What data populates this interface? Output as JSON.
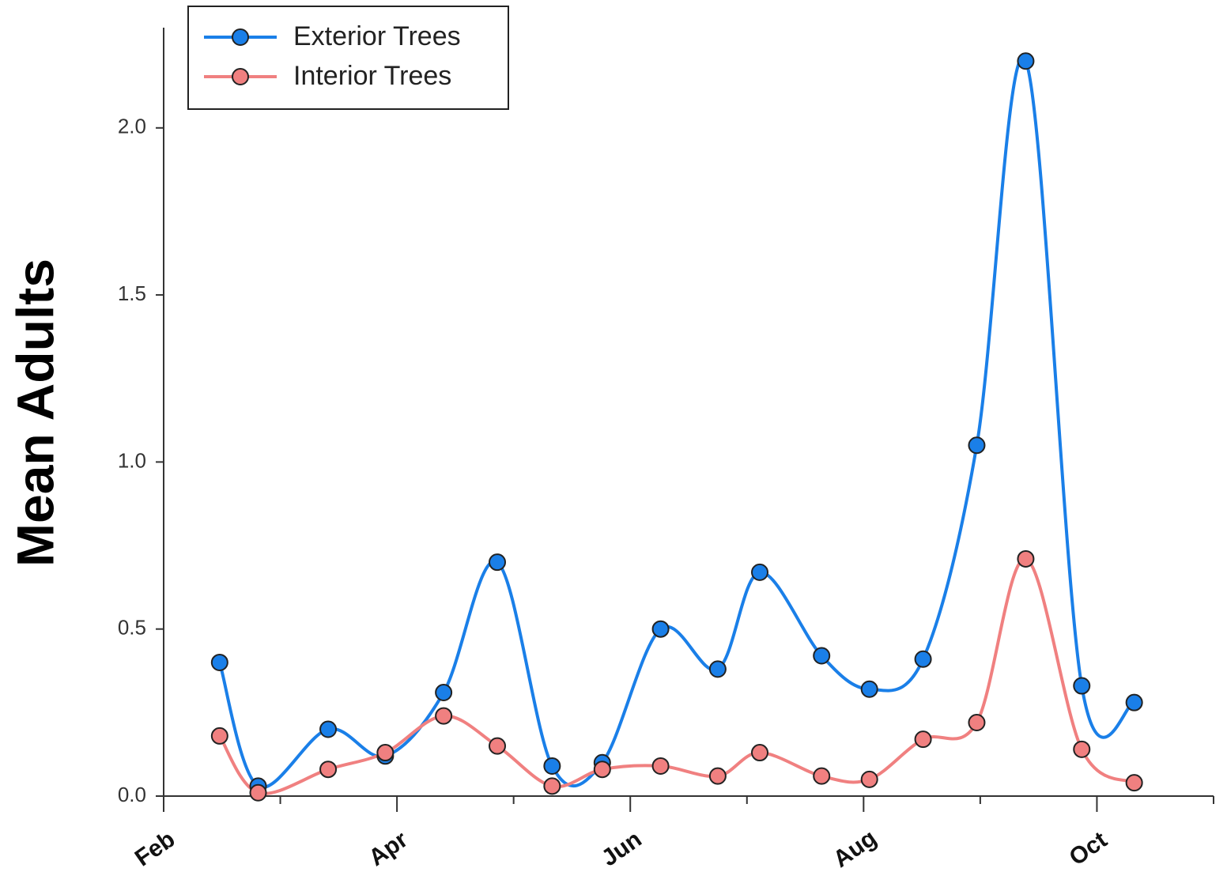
{
  "chart_data": {
    "type": "line",
    "y_label": "Mean Adults",
    "x": [
      2.48,
      2.81,
      3.41,
      3.9,
      4.4,
      4.86,
      5.33,
      5.76,
      6.26,
      6.75,
      7.11,
      7.64,
      8.05,
      8.51,
      8.97,
      9.39,
      9.87,
      10.32
    ],
    "series": [
      {
        "name": "Exterior Trees",
        "color": "#1a7fe8",
        "values": [
          0.4,
          0.03,
          0.2,
          0.12,
          0.31,
          0.7,
          0.09,
          0.1,
          0.5,
          0.38,
          0.67,
          0.42,
          0.32,
          0.41,
          1.05,
          2.2,
          0.33,
          0.28
        ]
      },
      {
        "name": "Interior Trees",
        "color": "#f08080",
        "values": [
          0.18,
          0.01,
          0.08,
          0.13,
          0.24,
          0.15,
          0.03,
          0.08,
          0.09,
          0.06,
          0.13,
          0.06,
          0.05,
          0.17,
          0.22,
          0.71,
          0.14,
          0.04
        ]
      }
    ],
    "xlim": [
      2,
      11
    ],
    "xticks": [
      {
        "value": 2,
        "label": "Feb"
      },
      {
        "value": 4,
        "label": "Apr"
      },
      {
        "value": 6,
        "label": "Jun"
      },
      {
        "value": 8,
        "label": "Aug"
      },
      {
        "value": 10,
        "label": "Oct"
      }
    ],
    "xminorticks": [
      3,
      5,
      7,
      9,
      11
    ],
    "ylim": [
      0,
      2.3
    ],
    "yticks": [
      {
        "value": 0,
        "label": "0.0"
      },
      0.5,
      {
        "value": 1,
        "label": "1.0"
      },
      1.5,
      {
        "value": 2,
        "label": "2.0"
      }
    ],
    "legend": "upper left",
    "smooth": true
  }
}
